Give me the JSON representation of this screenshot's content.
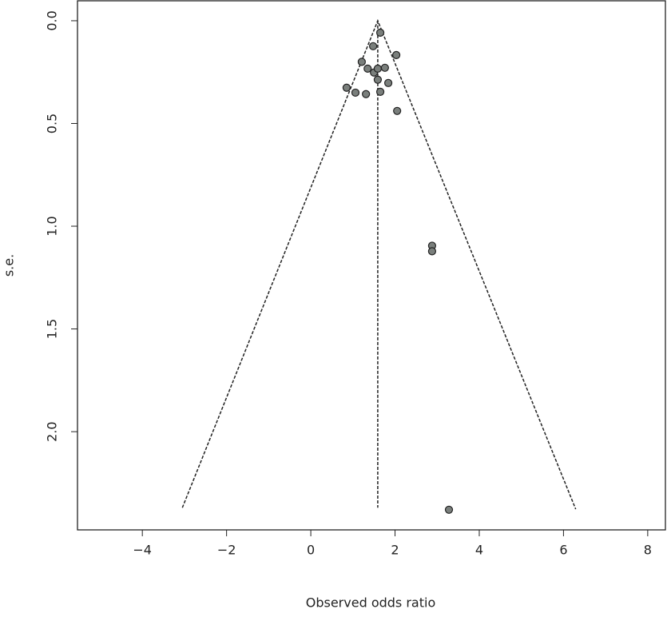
{
  "chart_data": {
    "type": "scatter",
    "xlabel": "Observed odds ratio",
    "ylabel": "s.e.",
    "x": [
      1.65,
      1.48,
      2.03,
      1.21,
      1.35,
      1.5,
      1.59,
      1.76,
      1.59,
      1.84,
      0.85,
      1.06,
      1.31,
      1.65,
      2.05,
      2.88,
      2.88,
      3.28
    ],
    "values": [
      0.058,
      0.124,
      0.167,
      0.2,
      0.233,
      0.252,
      0.233,
      0.229,
      0.287,
      0.303,
      0.326,
      0.35,
      0.357,
      0.346,
      0.439,
      1.095,
      1.122,
      2.38
    ],
    "color": "#7a7f7c",
    "xlim": [
      -5.54,
      8.42
    ],
    "ylim": [
      -0.097,
      2.478
    ],
    "y_inverted": true,
    "xticks": [
      {
        "value": -4,
        "label": "−4"
      },
      {
        "value": -2,
        "label": "−2"
      },
      0,
      2,
      4,
      6,
      8
    ],
    "yticks": [
      {
        "value": 0,
        "label": "0.0"
      },
      {
        "value": 0.5,
        "label": "0.5"
      },
      {
        "value": 1,
        "label": "1.0"
      },
      {
        "value": 1.5,
        "label": "1.5"
      },
      {
        "value": 2,
        "label": "2.0"
      }
    ],
    "funnel": {
      "x": [
        -3.05,
        1.59,
        6.29
      ],
      "y": [
        2.37,
        0,
        2.377
      ]
    },
    "center_line": {
      "x": [
        1.59,
        1.59
      ],
      "y": [
        0,
        2.37
      ]
    }
  }
}
